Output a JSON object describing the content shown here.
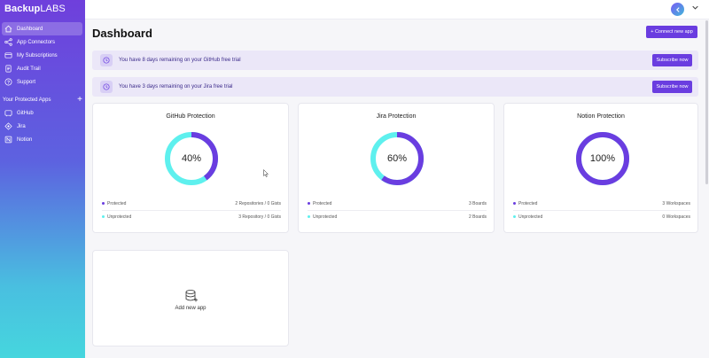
{
  "app": {
    "brand_bold": "Backup",
    "brand_rest": "LABS"
  },
  "sidebar": {
    "items": [
      {
        "label": "Dashboard",
        "icon": "home-icon",
        "active": true
      },
      {
        "label": "App Connectors",
        "icon": "share-icon"
      },
      {
        "label": "My Subscriptions",
        "icon": "subscription-icon"
      },
      {
        "label": "Audit Trail",
        "icon": "audit-icon"
      },
      {
        "label": "Support",
        "icon": "support-icon"
      }
    ],
    "section_title": "Your Protected Apps",
    "add_symbol": "+",
    "apps": [
      {
        "label": "GitHub",
        "icon": "github-icon"
      },
      {
        "label": "Jira",
        "icon": "jira-icon"
      },
      {
        "label": "Notion",
        "icon": "notion-icon"
      }
    ]
  },
  "header": {
    "title": "Dashboard",
    "connect_button": "+ Connect new app"
  },
  "banners": [
    {
      "message": "You have 8 days remaining on your GitHub free trial",
      "button": "Subscribe now"
    },
    {
      "message": "You have 3 days remaining on your Jira free trial",
      "button": "Subscribe now"
    }
  ],
  "cards": [
    {
      "title": "GitHub Protection",
      "percent_label": "40%",
      "percent": 40,
      "protected_label": "Protected",
      "protected_value": "2 Repositories / 0 Gists",
      "unprotected_label": "Unprotected",
      "unprotected_value": "3 Repository / 0 Gists"
    },
    {
      "title": "Jira Protection",
      "percent_label": "60%",
      "percent": 60,
      "protected_label": "Protected",
      "protected_value": "3 Boards",
      "unprotected_label": "Unprotected",
      "unprotected_value": "2 Boards"
    },
    {
      "title": "Notion Protection",
      "percent_label": "100%",
      "percent": 100,
      "protected_label": "Protected",
      "protected_value": "3 Workspaces",
      "unprotected_label": "Unprotected",
      "unprotected_value": "0 Workspaces"
    }
  ],
  "add_app": {
    "label": "Add new app",
    "icon": "database-add-icon"
  },
  "colors": {
    "accent": "#6a3de0",
    "protected": "#6a3de0",
    "unprotected": "#5ef0ee",
    "banner_bg": "#ebe7f8"
  }
}
